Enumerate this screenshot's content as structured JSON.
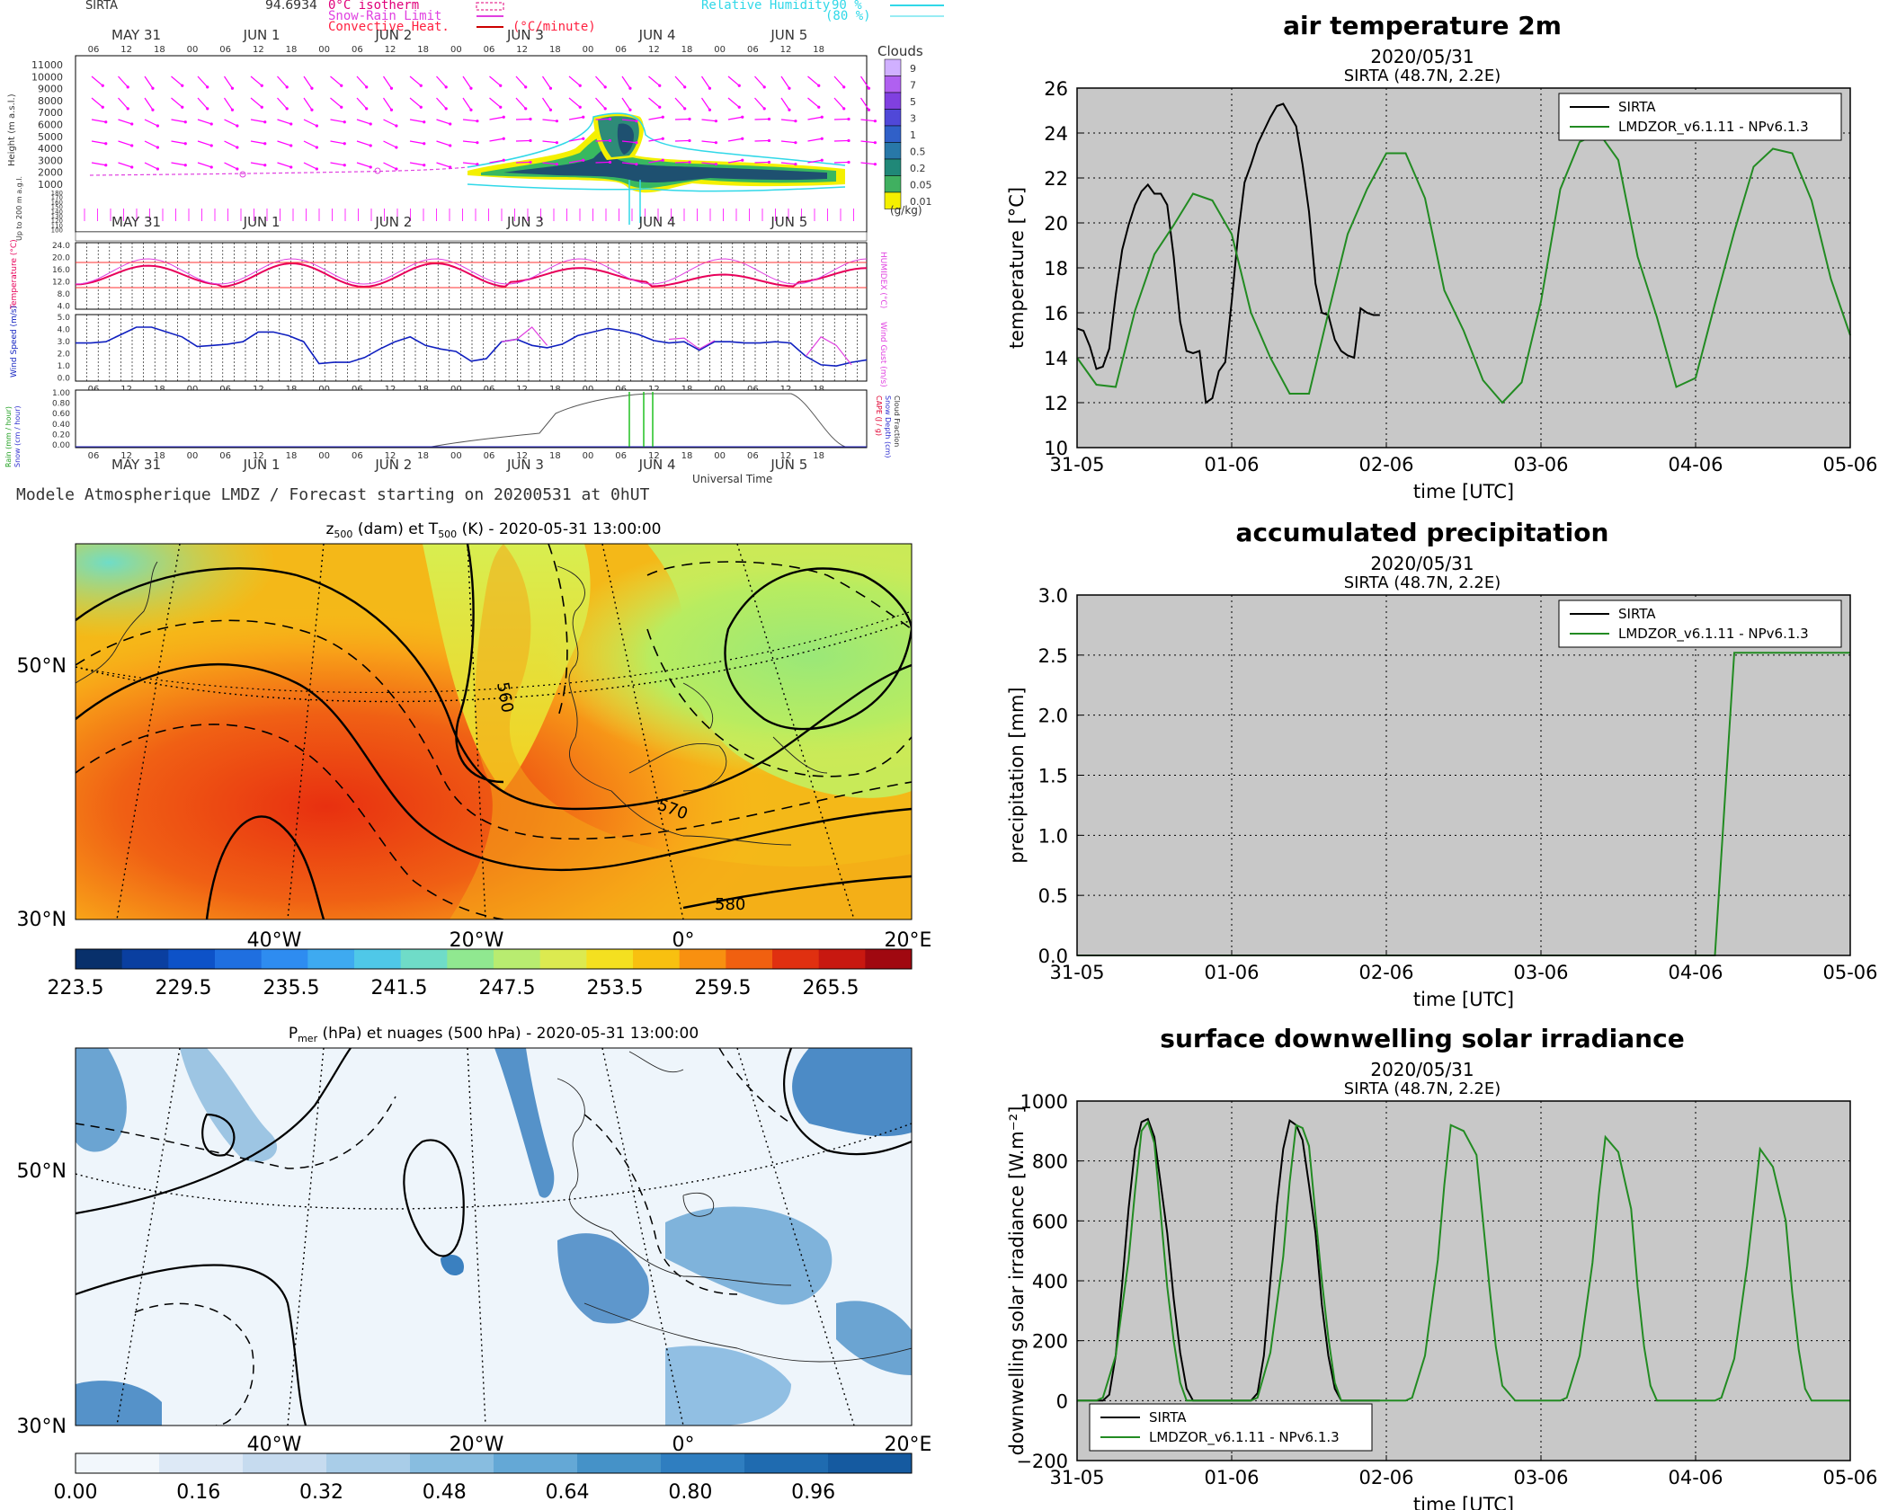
{
  "meteogram": {
    "station": "SIRTA",
    "value_readout": "94.6934",
    "legend": {
      "isotherm": "0°C isotherm",
      "snow_rain": "Snow-Rain Limit",
      "convective": "Convective Heat.",
      "conv_unit": "(°C/minute)",
      "rh": "Relative Humidity",
      "rh90": "90 %",
      "rh80": "(80 %)"
    },
    "day_labels": [
      "MAY 31",
      "JUN 1",
      "JUN 2",
      "JUN 3",
      "JUN 4",
      "JUN 5"
    ],
    "hour_ticks": [
      "06",
      "12",
      "18",
      "00",
      "06",
      "12",
      "18",
      "00",
      "06",
      "12",
      "18",
      "00",
      "06",
      "12",
      "18",
      "00",
      "06",
      "12",
      "18",
      "00",
      "06",
      "12",
      "18"
    ],
    "heights": [
      "11000",
      "10000",
      "9000",
      "8000",
      "7000",
      "6000",
      "5000",
      "4000",
      "3000",
      "2000",
      "1000"
    ],
    "lowheights": [
      "180",
      "170",
      "160",
      "150",
      "140",
      "130",
      "120",
      "110",
      "100"
    ],
    "height_axis_label": "Height (m a.s.l.)",
    "low_axis_label": "Up to 200 m a.g.l.",
    "cloud_title": "Clouds",
    "cloud_scale": [
      "9",
      "7",
      "5",
      "3",
      "1",
      "0.5",
      "0.2",
      "0.05",
      "0.01"
    ],
    "cloud_unit": "(g/kg)",
    "temp_ticks": [
      "24.0",
      "20.0",
      "16.0",
      "12.0",
      "8.0",
      "4.0"
    ],
    "temp_label": "Temperature (°C)",
    "humidex_label": "HUMIDEX (°C)",
    "wind_ticks": [
      "5.0",
      "4.0",
      "3.0",
      "2.0",
      "1.0",
      "0.0"
    ],
    "wind_label": "Wind Speed (m/s)",
    "gust_label": "Wind Gust (m/s)",
    "rain_ticks": [
      "1.00",
      "0.80",
      "0.60",
      "0.40",
      "0.20",
      "0.00"
    ],
    "rain_label_a": "Rain (mm / hour)",
    "rain_label_b": "Snow (cm / hour)",
    "cape_label_a": "CAPE (J / g)",
    "cape_label_b": "Snow Depth (cm)",
    "cape_label_c": "Cloud Fraction",
    "universal_time": "Universal Time",
    "footer": "Modele Atmospherique LMDZ / Forecast starting on 20200531 at 0hUT"
  },
  "map1": {
    "title_pre": "z",
    "title_sub1": "500",
    "title_mid": " (dam) et T",
    "title_sub2": "500",
    "title_post": " (K) - 2020-05-31 13:00:00",
    "lat_labels": [
      "50°N",
      "30°N"
    ],
    "lon_labels": [
      "40°W",
      "20°W",
      "0°",
      "20°E"
    ],
    "contour_labels": [
      "560",
      "570",
      "580"
    ],
    "colorbar_ticks": [
      "223.5",
      "229.5",
      "235.5",
      "241.5",
      "247.5",
      "253.5",
      "259.5",
      "265.5"
    ],
    "colorbar_colors": [
      "#08306b",
      "#0a3fa0",
      "#0d52c8",
      "#1f6fe0",
      "#2e8cf0",
      "#3eaaf0",
      "#4fc8e8",
      "#6fdcc8",
      "#90e890",
      "#b8ec70",
      "#dcea50",
      "#f4e020",
      "#f8c010",
      "#f89010",
      "#f06010",
      "#e03010",
      "#c81810",
      "#a00810"
    ]
  },
  "map2": {
    "title_pre": "P",
    "title_sub": "mer",
    "title_post": " (hPa) et nuages (500 hPa) - 2020-05-31 13:00:00",
    "lat_labels": [
      "50°N",
      "30°N"
    ],
    "lon_labels": [
      "40°W",
      "20°W",
      "0°",
      "20°E"
    ],
    "colorbar_ticks": [
      "0.00",
      "0.16",
      "0.32",
      "0.48",
      "0.64",
      "0.80",
      "0.96"
    ],
    "colorbar_colors": [
      "#f2f7fc",
      "#dde9f6",
      "#c6dbef",
      "#a9cde8",
      "#88bde0",
      "#64a8d6",
      "#4592c8",
      "#2f7ec0",
      "#1f6bb0",
      "#155aa0"
    ]
  },
  "chart_data": [
    {
      "type": "line",
      "title": "air temperature 2m",
      "subtitle": "2020/05/31",
      "subtitle2": "SIRTA (48.7N, 2.2E)",
      "xlabel": "time [UTC]",
      "ylabel": "temperature [°C]",
      "ylim": [
        10,
        26
      ],
      "yticks": [
        "10",
        "12",
        "14",
        "16",
        "18",
        "20",
        "22",
        "24",
        "26"
      ],
      "xlim": [
        0,
        5
      ],
      "xticks": [
        "31-05",
        "01-06",
        "02-06",
        "03-06",
        "04-06",
        "05-06"
      ],
      "grid": true,
      "legend_position": "top-right",
      "series": [
        {
          "name": "SIRTA",
          "color": "#000000",
          "x": [
            0,
            0.042,
            0.083,
            0.125,
            0.167,
            0.208,
            0.25,
            0.292,
            0.333,
            0.375,
            0.417,
            0.458,
            0.5,
            0.542,
            0.583,
            0.625,
            0.667,
            0.708,
            0.75,
            0.792,
            0.833,
            0.875,
            0.917,
            0.958,
            1,
            1.042,
            1.083,
            1.125,
            1.167,
            1.208,
            1.25,
            1.292,
            1.333,
            1.375,
            1.417,
            1.458,
            1.5,
            1.542,
            1.583,
            1.625,
            1.667,
            1.708,
            1.75,
            1.792,
            1.833,
            1.875,
            1.917,
            1.958
          ],
          "y": [
            15.3,
            15.2,
            14.5,
            13.5,
            13.6,
            14.4,
            16.8,
            18.8,
            19.9,
            20.8,
            21.4,
            21.7,
            21.3,
            21.3,
            20.8,
            18.5,
            15.6,
            14.3,
            14.2,
            14.3,
            12.0,
            12.2,
            13.4,
            13.8,
            16.5,
            19.5,
            21.8,
            22.6,
            23.5,
            24.1,
            24.7,
            25.2,
            25.3,
            24.8,
            24.3,
            22.6,
            20.5,
            17.3,
            16.0,
            15.9,
            14.8,
            14.3,
            14.1,
            14.0,
            16.2,
            16.0,
            15.9,
            15.9
          ]
        },
        {
          "name": "LMDZOR_v6.1.11 - NPv6.1.3",
          "color": "#228b22",
          "x": [
            0,
            0.125,
            0.25,
            0.375,
            0.5,
            0.625,
            0.75,
            0.875,
            1,
            1.125,
            1.25,
            1.375,
            1.5,
            1.625,
            1.75,
            1.875,
            2,
            2.125,
            2.25,
            2.375,
            2.5,
            2.625,
            2.75,
            2.875,
            3,
            3.125,
            3.25,
            3.375,
            3.5,
            3.625,
            3.75,
            3.875,
            4,
            4.125,
            4.25,
            4.375,
            4.5,
            4.625,
            4.75,
            4.875,
            5
          ],
          "y": [
            14.0,
            12.8,
            12.7,
            16.1,
            18.6,
            19.9,
            21.3,
            21.0,
            19.5,
            16.0,
            14.0,
            12.4,
            12.4,
            16.0,
            19.5,
            21.5,
            23.1,
            23.1,
            21.1,
            17.0,
            15.2,
            13.0,
            12.0,
            12.9,
            16.5,
            21.5,
            23.6,
            24.0,
            22.8,
            18.5,
            15.8,
            12.7,
            13.1,
            16.4,
            19.6,
            22.5,
            23.3,
            23.1,
            21.0,
            17.5,
            15.0
          ]
        }
      ]
    },
    {
      "type": "line",
      "title": "accumulated precipitation",
      "subtitle": "2020/05/31",
      "subtitle2": "SIRTA (48.7N, 2.2E)",
      "xlabel": "time [UTC]",
      "ylabel": "precipitation [mm]",
      "ylim": [
        0,
        3.0
      ],
      "yticks": [
        "0.0",
        "0.5",
        "1.0",
        "1.5",
        "2.0",
        "2.5",
        "3.0"
      ],
      "xlim": [
        0,
        5
      ],
      "xticks": [
        "31-05",
        "01-06",
        "02-06",
        "03-06",
        "04-06",
        "05-06"
      ],
      "grid": true,
      "legend_position": "top-right",
      "series": [
        {
          "name": "SIRTA",
          "color": "#000000",
          "x": [],
          "y": []
        },
        {
          "name": "LMDZOR_v6.1.11 - NPv6.1.3",
          "color": "#228b22",
          "x": [
            0,
            4.125,
            4.25,
            4.5,
            5
          ],
          "y": [
            0,
            0,
            2.52,
            2.52,
            2.52
          ]
        }
      ]
    },
    {
      "type": "line",
      "title": "surface downwelling solar irradiance",
      "subtitle": "2020/05/31",
      "subtitle2": "SIRTA (48.7N, 2.2E)",
      "xlabel": "time [UTC]",
      "ylabel": "downwelling solar irradiance [W.m⁻²]",
      "ylim": [
        -200,
        1000
      ],
      "yticks": [
        "−200",
        "0",
        "200",
        "400",
        "600",
        "800",
        "1000"
      ],
      "xlim": [
        0,
        5
      ],
      "xticks": [
        "31-05",
        "01-06",
        "02-06",
        "03-06",
        "04-06",
        "05-06"
      ],
      "grid": true,
      "legend_position": "bottom-left",
      "series": [
        {
          "name": "SIRTA",
          "color": "#000000",
          "x": [
            0,
            0.083,
            0.167,
            0.208,
            0.25,
            0.292,
            0.333,
            0.375,
            0.417,
            0.458,
            0.5,
            0.542,
            0.583,
            0.625,
            0.667,
            0.708,
            0.75,
            0.792,
            0.833,
            0.875,
            0.917,
            0.958,
            1,
            1.042,
            1.083,
            1.125,
            1.167,
            1.208,
            1.25,
            1.292,
            1.333,
            1.375,
            1.417,
            1.458,
            1.5,
            1.542,
            1.583,
            1.625,
            1.667,
            1.708,
            1.75,
            1.792,
            1.833,
            1.875,
            1.917,
            1.958
          ],
          "y": [
            0,
            0,
            0,
            20,
            150,
            390,
            640,
            840,
            930,
            940,
            880,
            720,
            560,
            340,
            160,
            40,
            0,
            0,
            0,
            0,
            0,
            0,
            0,
            0,
            0,
            0,
            25,
            150,
            400,
            650,
            840,
            935,
            920,
            870,
            720,
            560,
            320,
            150,
            40,
            0,
            0,
            0,
            0,
            0,
            0,
            0
          ]
        },
        {
          "name": "LMDZOR_v6.1.11 - NPv6.1.3",
          "color": "#228b22",
          "x": [
            0,
            0.125,
            0.167,
            0.25,
            0.333,
            0.375,
            0.417,
            0.458,
            0.5,
            0.542,
            0.583,
            0.625,
            0.667,
            0.708,
            0.75,
            0.833,
            1,
            1.125,
            1.167,
            1.25,
            1.333,
            1.375,
            1.417,
            1.458,
            1.5,
            1.542,
            1.583,
            1.625,
            1.667,
            1.708,
            1.75,
            1.833,
            2,
            2.125,
            2.167,
            2.25,
            2.333,
            2.375,
            2.417,
            2.5,
            2.583,
            2.625,
            2.667,
            2.708,
            2.75,
            2.833,
            3,
            3.125,
            3.167,
            3.25,
            3.333,
            3.375,
            3.417,
            3.5,
            3.583,
            3.625,
            3.667,
            3.708,
            3.75,
            3.833,
            4,
            4.125,
            4.167,
            4.25,
            4.333,
            4.375,
            4.417,
            4.5,
            4.583,
            4.625,
            4.667,
            4.708,
            4.75,
            4.833,
            5
          ],
          "y": [
            0,
            0,
            10,
            150,
            470,
            700,
            900,
            930,
            860,
            620,
            380,
            200,
            60,
            0,
            0,
            0,
            0,
            0,
            10,
            160,
            480,
            730,
            920,
            910,
            850,
            620,
            400,
            210,
            60,
            0,
            0,
            0,
            0,
            0,
            10,
            150,
            470,
            720,
            920,
            900,
            820,
            600,
            380,
            180,
            50,
            0,
            0,
            0,
            10,
            150,
            460,
            690,
            880,
            830,
            640,
            380,
            180,
            50,
            0,
            0,
            0,
            0,
            10,
            140,
            450,
            640,
            840,
            780,
            600,
            360,
            170,
            40,
            0,
            0,
            0
          ]
        }
      ]
    }
  ]
}
